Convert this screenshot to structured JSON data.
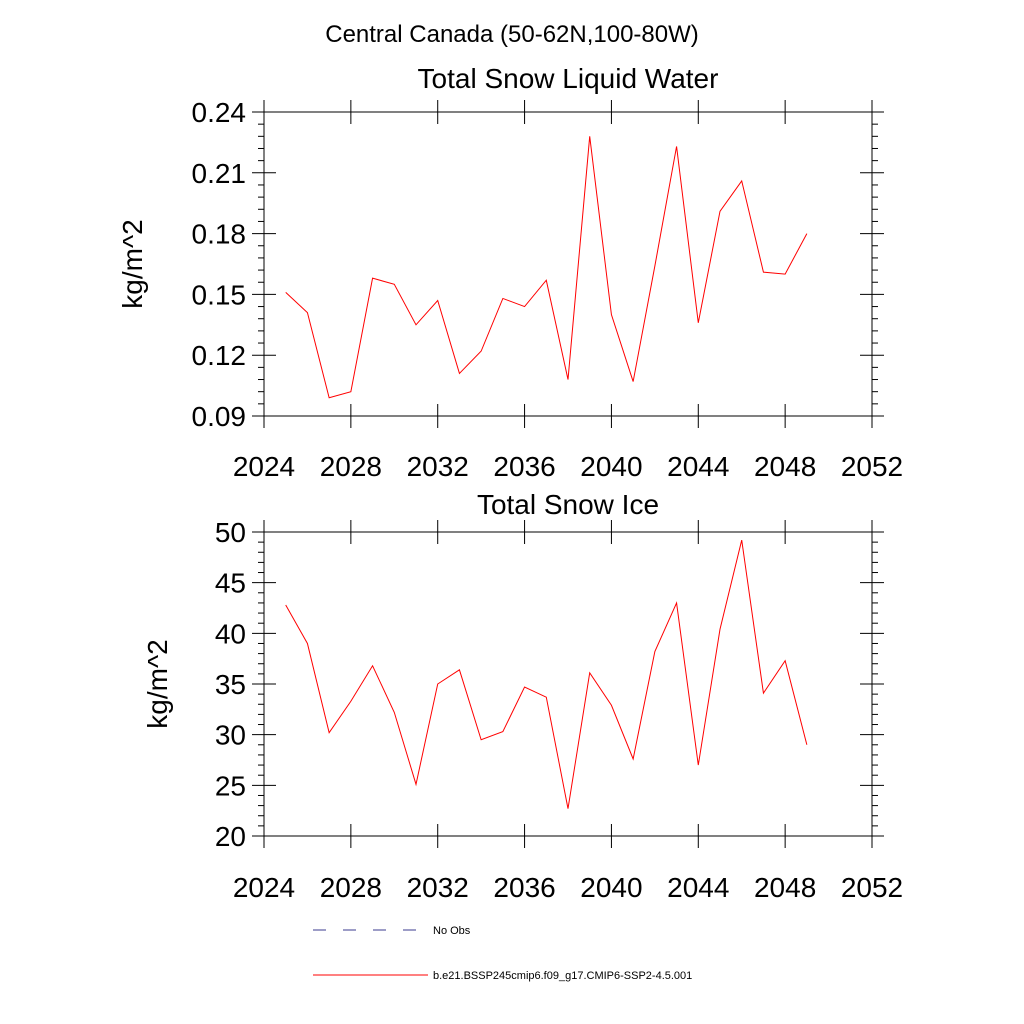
{
  "figure": {
    "suptitle": "Central Canada (50-62N,100-80W)"
  },
  "legend": {
    "entries": [
      {
        "label": "No Obs",
        "color": "#3b3b8f",
        "style": "dashed"
      },
      {
        "label": "b.e21.BSSP245cmip6.f09_g17.CMIP6-SSP2-4.5.001",
        "color": "#ff0000",
        "style": "solid"
      }
    ]
  },
  "chart_data": [
    {
      "type": "line",
      "title": "Total Snow Liquid Water",
      "xlabel": "",
      "ylabel": "kg/m^2",
      "xlim": [
        2024,
        2052
      ],
      "ylim": [
        0.09,
        0.24
      ],
      "xticks": [
        2024,
        2028,
        2032,
        2036,
        2040,
        2044,
        2048,
        2052
      ],
      "yticks": [
        0.09,
        0.12,
        0.15,
        0.18,
        0.21,
        0.24
      ],
      "ytick_labels": [
        "0.09",
        "0.12",
        "0.15",
        "0.18",
        "0.21",
        "0.24"
      ],
      "series": [
        {
          "color": "#ff0000",
          "x": [
            2025,
            2026,
            2027,
            2028,
            2029,
            2030,
            2031,
            2032,
            2033,
            2034,
            2035,
            2036,
            2037,
            2038,
            2039,
            2040,
            2041,
            2042,
            2043,
            2044,
            2045,
            2046,
            2047,
            2048,
            2049
          ],
          "values": [
            0.151,
            0.141,
            0.099,
            0.102,
            0.158,
            0.155,
            0.135,
            0.147,
            0.111,
            0.122,
            0.148,
            0.144,
            0.157,
            0.108,
            0.228,
            0.14,
            0.107,
            0.164,
            0.223,
            0.136,
            0.191,
            0.206,
            0.161,
            0.16,
            0.18
          ]
        }
      ]
    },
    {
      "type": "line",
      "title": "Total Snow Ice",
      "xlabel": "",
      "ylabel": "kg/m^2",
      "xlim": [
        2024,
        2052
      ],
      "ylim": [
        20,
        50
      ],
      "xticks": [
        2024,
        2028,
        2032,
        2036,
        2040,
        2044,
        2048,
        2052
      ],
      "yticks": [
        20,
        25,
        30,
        35,
        40,
        45,
        50
      ],
      "ytick_labels": [
        "20",
        "25",
        "30",
        "35",
        "40",
        "45",
        "50"
      ],
      "series": [
        {
          "color": "#ff0000",
          "x": [
            2025,
            2026,
            2027,
            2028,
            2029,
            2030,
            2031,
            2032,
            2033,
            2034,
            2035,
            2036,
            2037,
            2038,
            2039,
            2040,
            2041,
            2042,
            2043,
            2044,
            2045,
            2046,
            2047,
            2048,
            2049
          ],
          "values": [
            42.8,
            39.0,
            30.2,
            33.3,
            36.8,
            32.2,
            25.1,
            35.0,
            36.4,
            29.5,
            30.3,
            34.7,
            33.7,
            22.7,
            36.1,
            32.9,
            27.6,
            38.2,
            43.0,
            27.0,
            40.4,
            49.2,
            34.1,
            37.3,
            29.0
          ]
        }
      ]
    }
  ]
}
